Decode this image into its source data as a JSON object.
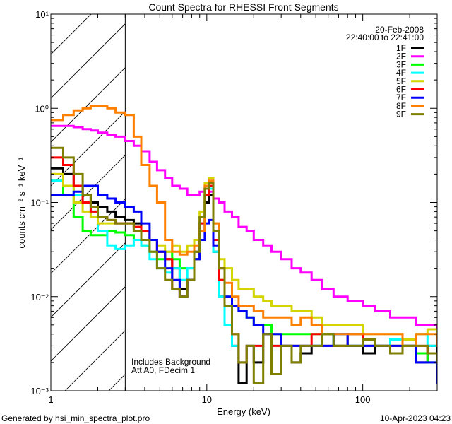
{
  "chart_data": {
    "type": "line",
    "title": "Count Spectra for RHESSI Front Segments",
    "xlabel": "Energy (keV)",
    "ylabel": "counts cm⁻² s⁻¹ keV⁻¹",
    "xscale": "log",
    "yscale": "log",
    "xlim": [
      1,
      300
    ],
    "ylim": [
      0.001,
      10
    ],
    "xticks": [
      {
        "value": 1,
        "label": "1"
      },
      {
        "value": 10,
        "label": "10"
      },
      {
        "value": 100,
        "label": "100"
      }
    ],
    "yticks": [
      {
        "value": 0.001,
        "label": "10⁻³"
      },
      {
        "value": 0.01,
        "label": "10⁻²"
      },
      {
        "value": 0.1,
        "label": "10⁻¹"
      },
      {
        "value": 1,
        "label": "10⁰"
      },
      {
        "value": 10,
        "label": "10¹"
      }
    ],
    "excluded_range": [
      1,
      3
    ],
    "legend": {
      "placement": "top-right",
      "date": "20-Feb-2008",
      "time_range": "22:40:00 to 22:41:00"
    },
    "annotations": [
      "Includes Background",
      "Att A0, FDecim 1"
    ],
    "x": [
      1.0,
      1.2,
      1.4,
      1.6,
      1.8,
      2.0,
      2.3,
      2.6,
      3.0,
      3.4,
      3.8,
      4.3,
      4.8,
      5.4,
      6.0,
      6.7,
      7.5,
      8.3,
      9.0,
      9.7,
      10.3,
      11,
      12,
      13,
      14.5,
      16,
      18,
      20,
      23,
      26,
      30,
      35,
      40,
      47,
      55,
      65,
      80,
      100,
      120,
      150,
      180,
      220,
      260,
      300
    ],
    "series": [
      {
        "name": "1F",
        "color": "#000000",
        "values": [
          0.23,
          0.2,
          0.15,
          0.12,
          0.1,
          0.09,
          0.08,
          0.07,
          0.065,
          0.06,
          0.05,
          0.04,
          0.03,
          0.025,
          0.02,
          0.012,
          0.015,
          0.025,
          0.05,
          0.1,
          0.12,
          0.03,
          0.01,
          0.005,
          0.003,
          0.0012,
          0.003,
          0.002,
          0.004,
          0.0015,
          0.003,
          0.002,
          0.0025,
          0.003,
          0.004,
          0.003,
          0.003,
          0.0025,
          0.003,
          0.0025,
          0.003,
          0.002,
          0.003,
          0.002
        ]
      },
      {
        "name": "2F",
        "color": "#ff00ff",
        "values": [
          0.65,
          0.65,
          0.63,
          0.6,
          0.58,
          0.55,
          0.52,
          0.5,
          0.45,
          0.4,
          0.35,
          0.27,
          0.22,
          0.18,
          0.15,
          0.14,
          0.12,
          0.12,
          0.13,
          0.14,
          0.13,
          0.11,
          0.1,
          0.08,
          0.07,
          0.055,
          0.05,
          0.04,
          0.035,
          0.03,
          0.025,
          0.02,
          0.018,
          0.015,
          0.012,
          0.01,
          0.009,
          0.008,
          0.007,
          0.006,
          0.006,
          0.005,
          0.005,
          0.004
        ]
      },
      {
        "name": "3F",
        "color": "#00ff00",
        "values": [
          0.17,
          0.12,
          0.07,
          0.05,
          0.045,
          0.045,
          0.05,
          0.048,
          0.045,
          0.04,
          0.035,
          0.03,
          0.025,
          0.03,
          0.025,
          0.02,
          0.02,
          0.03,
          0.06,
          0.12,
          0.15,
          0.04,
          0.015,
          0.01,
          0.008,
          0.007,
          0.006,
          0.005,
          0.005,
          0.004,
          0.004,
          0.004,
          0.004,
          0.004,
          0.004,
          0.003,
          0.004,
          0.003,
          0.003,
          0.003,
          0.003,
          0.0025,
          0.002,
          0.002
        ]
      },
      {
        "name": "4F",
        "color": "#00ffff",
        "values": [
          0.17,
          0.15,
          0.12,
          0.1,
          0.08,
          0.05,
          0.035,
          0.032,
          0.035,
          0.04,
          0.035,
          0.025,
          0.02,
          0.018,
          0.02,
          0.015,
          0.02,
          0.03,
          0.06,
          0.12,
          0.14,
          0.03,
          0.01,
          0.005,
          0.003,
          0.002,
          0.003,
          0.003,
          0.004,
          0.003,
          0.003,
          0.003,
          0.003,
          0.003,
          0.003,
          0.004,
          0.003,
          0.003,
          0.003,
          0.0035,
          0.003,
          0.004,
          0.003,
          0.003
        ]
      },
      {
        "name": "5F",
        "color": "#d4d400",
        "values": [
          0.2,
          0.15,
          0.1,
          0.08,
          0.07,
          0.06,
          0.06,
          0.06,
          0.06,
          0.055,
          0.05,
          0.04,
          0.035,
          0.03,
          0.035,
          0.03,
          0.035,
          0.04,
          0.08,
          0.16,
          0.18,
          0.06,
          0.025,
          0.02,
          0.015,
          0.012,
          0.012,
          0.01,
          0.009,
          0.008,
          0.008,
          0.007,
          0.007,
          0.006,
          0.005,
          0.005,
          0.005,
          0.004,
          0.004,
          0.004,
          0.0035,
          0.004,
          0.0045,
          0.004
        ]
      },
      {
        "name": "6F",
        "color": "#ff0000",
        "values": [
          0.3,
          0.25,
          0.15,
          0.1,
          0.08,
          0.07,
          0.065,
          0.06,
          0.06,
          0.055,
          0.05,
          0.04,
          0.03,
          0.025,
          0.012,
          0.01,
          0.015,
          0.03,
          0.06,
          0.12,
          0.15,
          0.04,
          0.015,
          0.008,
          0.004,
          0.002,
          0.003,
          0.003,
          0.004,
          0.003,
          0.003,
          0.003,
          0.003,
          0.004,
          0.003,
          0.003,
          0.004,
          0.003,
          0.003,
          0.003,
          0.003,
          0.003,
          0.0025,
          0.002
        ]
      },
      {
        "name": "7F",
        "color": "#0000ff",
        "values": [
          0.12,
          0.12,
          0.13,
          0.15,
          0.15,
          0.12,
          0.11,
          0.1,
          0.09,
          0.08,
          0.06,
          0.04,
          0.03,
          0.02,
          0.015,
          0.01,
          0.015,
          0.025,
          0.04,
          0.06,
          0.065,
          0.035,
          0.02,
          0.01,
          0.008,
          0.007,
          0.006,
          0.005,
          0.004,
          0.004,
          0.003,
          0.003,
          0.003,
          0.003,
          0.003,
          0.004,
          0.003,
          0.003,
          0.003,
          0.003,
          0.003,
          0.002,
          0.002,
          0.0012
        ]
      },
      {
        "name": "8F",
        "color": "#ff8000",
        "values": [
          0.75,
          0.85,
          0.95,
          1.0,
          1.05,
          1.05,
          1.0,
          0.9,
          0.85,
          0.5,
          0.25,
          0.15,
          0.1,
          0.04,
          0.03,
          0.028,
          0.03,
          0.035,
          0.05,
          0.15,
          0.17,
          0.06,
          0.02,
          0.014,
          0.01,
          0.008,
          0.008,
          0.007,
          0.006,
          0.006,
          0.006,
          0.005,
          0.006,
          0.005,
          0.004,
          0.004,
          0.004,
          0.004,
          0.004,
          0.004,
          0.003,
          0.004,
          0.004,
          0.003
        ]
      },
      {
        "name": "9F",
        "color": "#808000",
        "values": [
          0.38,
          0.3,
          0.2,
          0.12,
          0.09,
          0.07,
          0.065,
          0.06,
          0.06,
          0.05,
          0.04,
          0.03,
          0.02,
          0.015,
          0.012,
          0.01,
          0.015,
          0.03,
          0.07,
          0.14,
          0.16,
          0.05,
          0.02,
          0.008,
          0.004,
          0.002,
          0.003,
          0.0012,
          0.004,
          0.0015,
          0.003,
          0.002,
          0.003,
          0.003,
          0.004,
          0.003,
          0.003,
          0.0035,
          0.003,
          0.0025,
          0.003,
          0.003,
          0.0025,
          0.002
        ]
      }
    ]
  },
  "footer": {
    "generator": "Generated by hsi_min_spectra_plot.pro",
    "timestamp": "10-Apr-2023 04:23"
  }
}
